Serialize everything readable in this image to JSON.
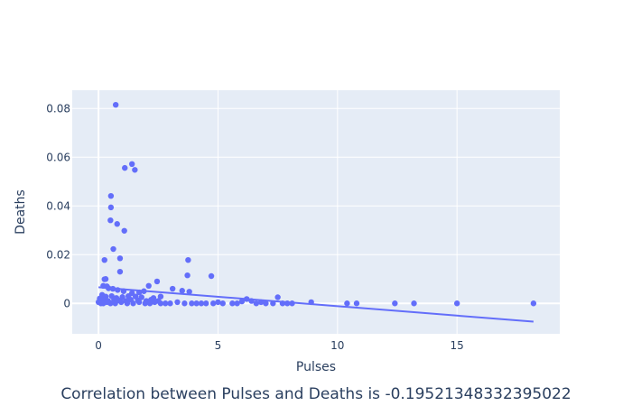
{
  "caption": "Correlation between Pulses and Deaths is -0.19521348332395022",
  "colors": {
    "plot_bg": "#e5ecf6",
    "grid": "#ffffff",
    "marker": "#636efa",
    "text": "#2a3f5f"
  },
  "chart_data": {
    "type": "scatter",
    "title": "",
    "xlabel": "Pulses",
    "ylabel": "Deaths",
    "xlim": [
      -1.1,
      19.3
    ],
    "ylim": [
      -0.0125,
      0.0875
    ],
    "x_ticks": [
      0,
      5,
      10,
      15
    ],
    "x_tick_labels": [
      "0",
      "5",
      "10",
      "15"
    ],
    "y_ticks": [
      0,
      0.02,
      0.04,
      0.06,
      0.08
    ],
    "y_tick_labels": [
      "0",
      "0.02",
      "0.04",
      "0.06",
      "0.08"
    ],
    "grid": true,
    "legend": "none",
    "points": [
      [
        0.72,
        0.0815
      ],
      [
        1.4,
        0.0572
      ],
      [
        1.1,
        0.0556
      ],
      [
        1.52,
        0.0548
      ],
      [
        0.52,
        0.0441
      ],
      [
        0.52,
        0.0394
      ],
      [
        0.5,
        0.0341
      ],
      [
        0.78,
        0.0326
      ],
      [
        1.08,
        0.0298
      ],
      [
        0.62,
        0.0223
      ],
      [
        0.9,
        0.0185
      ],
      [
        0.25,
        0.0178
      ],
      [
        3.75,
        0.0178
      ],
      [
        0.9,
        0.013
      ],
      [
        3.72,
        0.0115
      ],
      [
        4.72,
        0.0112
      ],
      [
        0.25,
        0.0099
      ],
      [
        0.3,
        0.01
      ],
      [
        2.45,
        0.009
      ],
      [
        0.2,
        0.0072
      ],
      [
        0.35,
        0.007
      ],
      [
        0.42,
        0.0062
      ],
      [
        0.6,
        0.006
      ],
      [
        0.8,
        0.0055
      ],
      [
        1.05,
        0.005
      ],
      [
        1.9,
        0.005
      ],
      [
        2.1,
        0.0072
      ],
      [
        3.1,
        0.006
      ],
      [
        3.5,
        0.0052
      ],
      [
        3.8,
        0.0048
      ],
      [
        1.4,
        0.0042
      ],
      [
        1.7,
        0.0045
      ],
      [
        0.15,
        0.0035
      ],
      [
        0.3,
        0.0028
      ],
      [
        0.55,
        0.003
      ],
      [
        0.75,
        0.0022
      ],
      [
        1.0,
        0.0026
      ],
      [
        1.25,
        0.003
      ],
      [
        1.55,
        0.0028
      ],
      [
        1.8,
        0.0025
      ],
      [
        2.3,
        0.0022
      ],
      [
        2.6,
        0.0028
      ],
      [
        0.05,
        0.002
      ],
      [
        0.1,
        0.0012
      ],
      [
        0.2,
        0.0015
      ],
      [
        0.4,
        0.001
      ],
      [
        0.65,
        0.0015
      ],
      [
        0.85,
        0.0012
      ],
      [
        1.15,
        0.001
      ],
      [
        1.35,
        0.0015
      ],
      [
        1.65,
        0.0012
      ],
      [
        2.0,
        0.001
      ],
      [
        2.2,
        0.0015
      ],
      [
        2.5,
        0.001
      ],
      [
        0.0,
        0.0005
      ],
      [
        0.1,
        0.0
      ],
      [
        0.2,
        0.0
      ],
      [
        0.35,
        0.0005
      ],
      [
        0.5,
        0.0
      ],
      [
        0.7,
        0.0
      ],
      [
        0.95,
        0.0005
      ],
      [
        1.2,
        0.0
      ],
      [
        1.45,
        0.0
      ],
      [
        1.7,
        0.0005
      ],
      [
        1.95,
        0.0
      ],
      [
        2.15,
        0.0
      ],
      [
        2.35,
        0.0005
      ],
      [
        2.6,
        0.0
      ],
      [
        2.8,
        0.0
      ],
      [
        3.0,
        0.0
      ],
      [
        3.3,
        0.0005
      ],
      [
        3.6,
        0.0
      ],
      [
        3.9,
        0.0
      ],
      [
        4.1,
        0.0
      ],
      [
        4.3,
        0.0
      ],
      [
        4.5,
        0.0
      ],
      [
        4.8,
        0.0
      ],
      [
        5.0,
        0.0005
      ],
      [
        5.2,
        0.0
      ],
      [
        5.6,
        0.0
      ],
      [
        5.8,
        0.0
      ],
      [
        6.0,
        0.0008
      ],
      [
        6.2,
        0.0018
      ],
      [
        6.4,
        0.001
      ],
      [
        6.6,
        0.0
      ],
      [
        6.8,
        0.0005
      ],
      [
        7.0,
        0.0
      ],
      [
        7.3,
        0.0
      ],
      [
        7.5,
        0.0025
      ],
      [
        7.7,
        0.0
      ],
      [
        7.9,
        0.0
      ],
      [
        8.1,
        0.0
      ],
      [
        8.9,
        0.0005
      ],
      [
        10.4,
        0.0
      ],
      [
        10.8,
        0.0
      ],
      [
        12.4,
        0.0
      ],
      [
        13.2,
        0.0
      ],
      [
        15.0,
        0.0
      ],
      [
        18.2,
        0.0
      ]
    ],
    "trendline": {
      "x": [
        0.0,
        18.2
      ],
      "y": [
        0.0066,
        -0.0075
      ]
    }
  }
}
